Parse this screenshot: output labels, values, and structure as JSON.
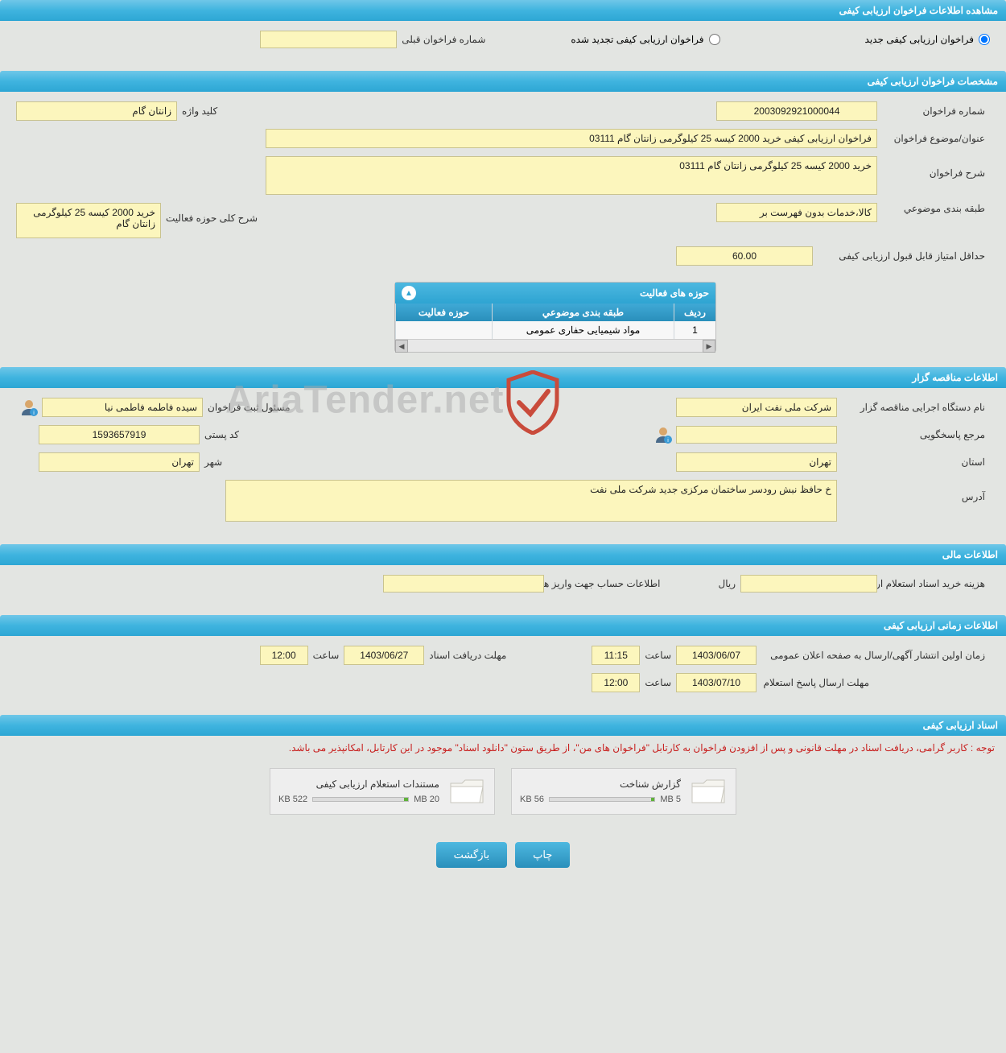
{
  "headers": {
    "main": "مشاهده اطلاعات فراخوان ارزیابی کیفی",
    "spec": "مشخصات فراخوان ارزیابی کیفی",
    "organizer": "اطلاعات مناقصه گزار",
    "financial": "اطلاعات مالی",
    "timing": "اطلاعات زمانی ارزیابی کیفی",
    "docs": "اسناد ارزیابی کیفی"
  },
  "top": {
    "radio_new": "فراخوان ارزیابی کیفی جدید",
    "radio_renewed": "فراخوان ارزیابی کیفی تجدید شده",
    "prev_label": "شماره فراخوان قبلی",
    "prev_value": ""
  },
  "spec": {
    "number_label": "شماره فراخوان",
    "number_value": "2003092921000044",
    "keyword_label": "کلید واژه",
    "keyword_value": "زانتان گام",
    "title_label": "عنوان/موضوع فراخوان",
    "title_value": "فراخوان ارزیابی کیفی خرید 2000 کیسه 25 کیلوگرمی زانتان گام 03111",
    "desc_label": "شرح فراخوان",
    "desc_value": "خرید 2000 کیسه 25 کیلوگرمی زانتان گام 03111",
    "category_label": "طبقه بندی موضوعي",
    "category_value": "کالا،خدمات بدون فهرست بر",
    "activity_desc_label": "شرح کلی حوزه فعالیت",
    "activity_desc_value": "خرید 2000 کیسه 25 کیلوگرمی زانتان گام",
    "min_score_label": "حداقل امتیاز قابل قبول ارزیابی کیفی",
    "min_score_value": "60.00"
  },
  "activity_panel": {
    "title": "حوزه های فعالیت",
    "col_idx": "ردیف",
    "col_cat": "طبقه بندی موضوعي",
    "col_act": "حوزه فعالیت",
    "rows": [
      {
        "idx": "1",
        "cat": "مواد شیمیایی حفاری عمومی",
        "act": ""
      }
    ]
  },
  "org": {
    "dept_label": "نام دستگاه اجرایی مناقصه گزار",
    "dept_value": "شرکت ملی نفت ایران",
    "registrar_label": "مسئول ثبت فراخوان",
    "registrar_value": "سیده فاطمه فاطمی نیا",
    "contact_label": "مرجع پاسخگویی",
    "contact_value": "",
    "postal_label": "کد پستی",
    "postal_value": "1593657919",
    "province_label": "استان",
    "province_value": "تهران",
    "city_label": "شهر",
    "city_value": "تهران",
    "address_label": "آدرس",
    "address_value": "خ حافظ نبش رودسر ساختمان مرکزی جدید شرکت ملی نفت"
  },
  "fin": {
    "cost_label": "هزینه خرید اسناد استعلام ارزیابی کیفی",
    "cost_value": "",
    "rial": "ریال",
    "account_label": "اطلاعات حساب جهت واریز هزینه خرید اسناد",
    "account_value": ""
  },
  "timing": {
    "publish_label": "زمان اولین انتشار آگهی/ارسال به صفحه اعلان عمومی",
    "publish_date": "1403/06/07",
    "publish_time": "11:15",
    "deadline_label": "مهلت دریافت اسناد",
    "deadline_date": "1403/06/27",
    "deadline_time": "12:00",
    "response_label": "مهلت ارسال پاسخ استعلام",
    "response_date": "1403/07/10",
    "response_time": "12:00",
    "time_word": "ساعت"
  },
  "docs": {
    "notice": "توجه : کاربر گرامی، دریافت اسناد در مهلت قانونی و پس از افزودن فراخوان به کارتابل \"فراخوان های من\"، از طریق ستون \"دانلود اسناد\" موجود در این کارتابل، امکانپذیر می باشد.",
    "items": [
      {
        "title": "گزارش شناخت",
        "used": "56 KB",
        "total": "5 MB",
        "fill_pct": 3
      },
      {
        "title": "مستندات استعلام ارزیابی کیفی",
        "used": "522 KB",
        "total": "20 MB",
        "fill_pct": 4
      }
    ]
  },
  "buttons": {
    "print": "چاپ",
    "back": "بازگشت"
  },
  "watermark": "AriaTender.net",
  "colors": {
    "header_bg": "#3fb4df",
    "field_bg": "#fcf6bd",
    "notice": "#c8201f"
  }
}
